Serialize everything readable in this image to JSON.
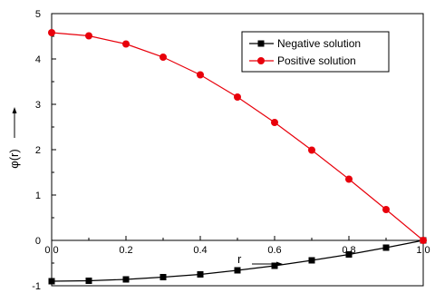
{
  "chart_data": {
    "type": "line",
    "title": "",
    "xlabel": "r",
    "ylabel": "φ(r)",
    "xlim": [
      0.0,
      1.0
    ],
    "ylim": [
      -1,
      5
    ],
    "x_ticks": [
      "0.0",
      "0.2",
      "0.4",
      "0.6",
      "0.8",
      "1.0"
    ],
    "x_tick_values": [
      0.0,
      0.2,
      0.4,
      0.6,
      0.8,
      1.0
    ],
    "y_ticks": [
      "-1",
      "0",
      "1",
      "2",
      "3",
      "4",
      "5"
    ],
    "y_tick_values": [
      -1,
      0,
      1,
      2,
      3,
      4,
      5
    ],
    "grid": false,
    "legend_position": "top-right",
    "x": [
      0.0,
      0.1,
      0.2,
      0.3,
      0.4,
      0.5,
      0.6,
      0.7,
      0.8,
      0.9,
      1.0
    ],
    "series": [
      {
        "name": "Negative solution",
        "color": "#000000",
        "marker": "square",
        "values": [
          -0.9,
          -0.89,
          -0.86,
          -0.81,
          -0.75,
          -0.66,
          -0.56,
          -0.44,
          -0.31,
          -0.16,
          0.0
        ]
      },
      {
        "name": "Positive solution",
        "color": "#e8000b",
        "marker": "circle",
        "values": [
          4.58,
          4.51,
          4.33,
          4.04,
          3.65,
          3.16,
          2.6,
          1.99,
          1.35,
          0.68,
          0.0
        ]
      }
    ]
  }
}
